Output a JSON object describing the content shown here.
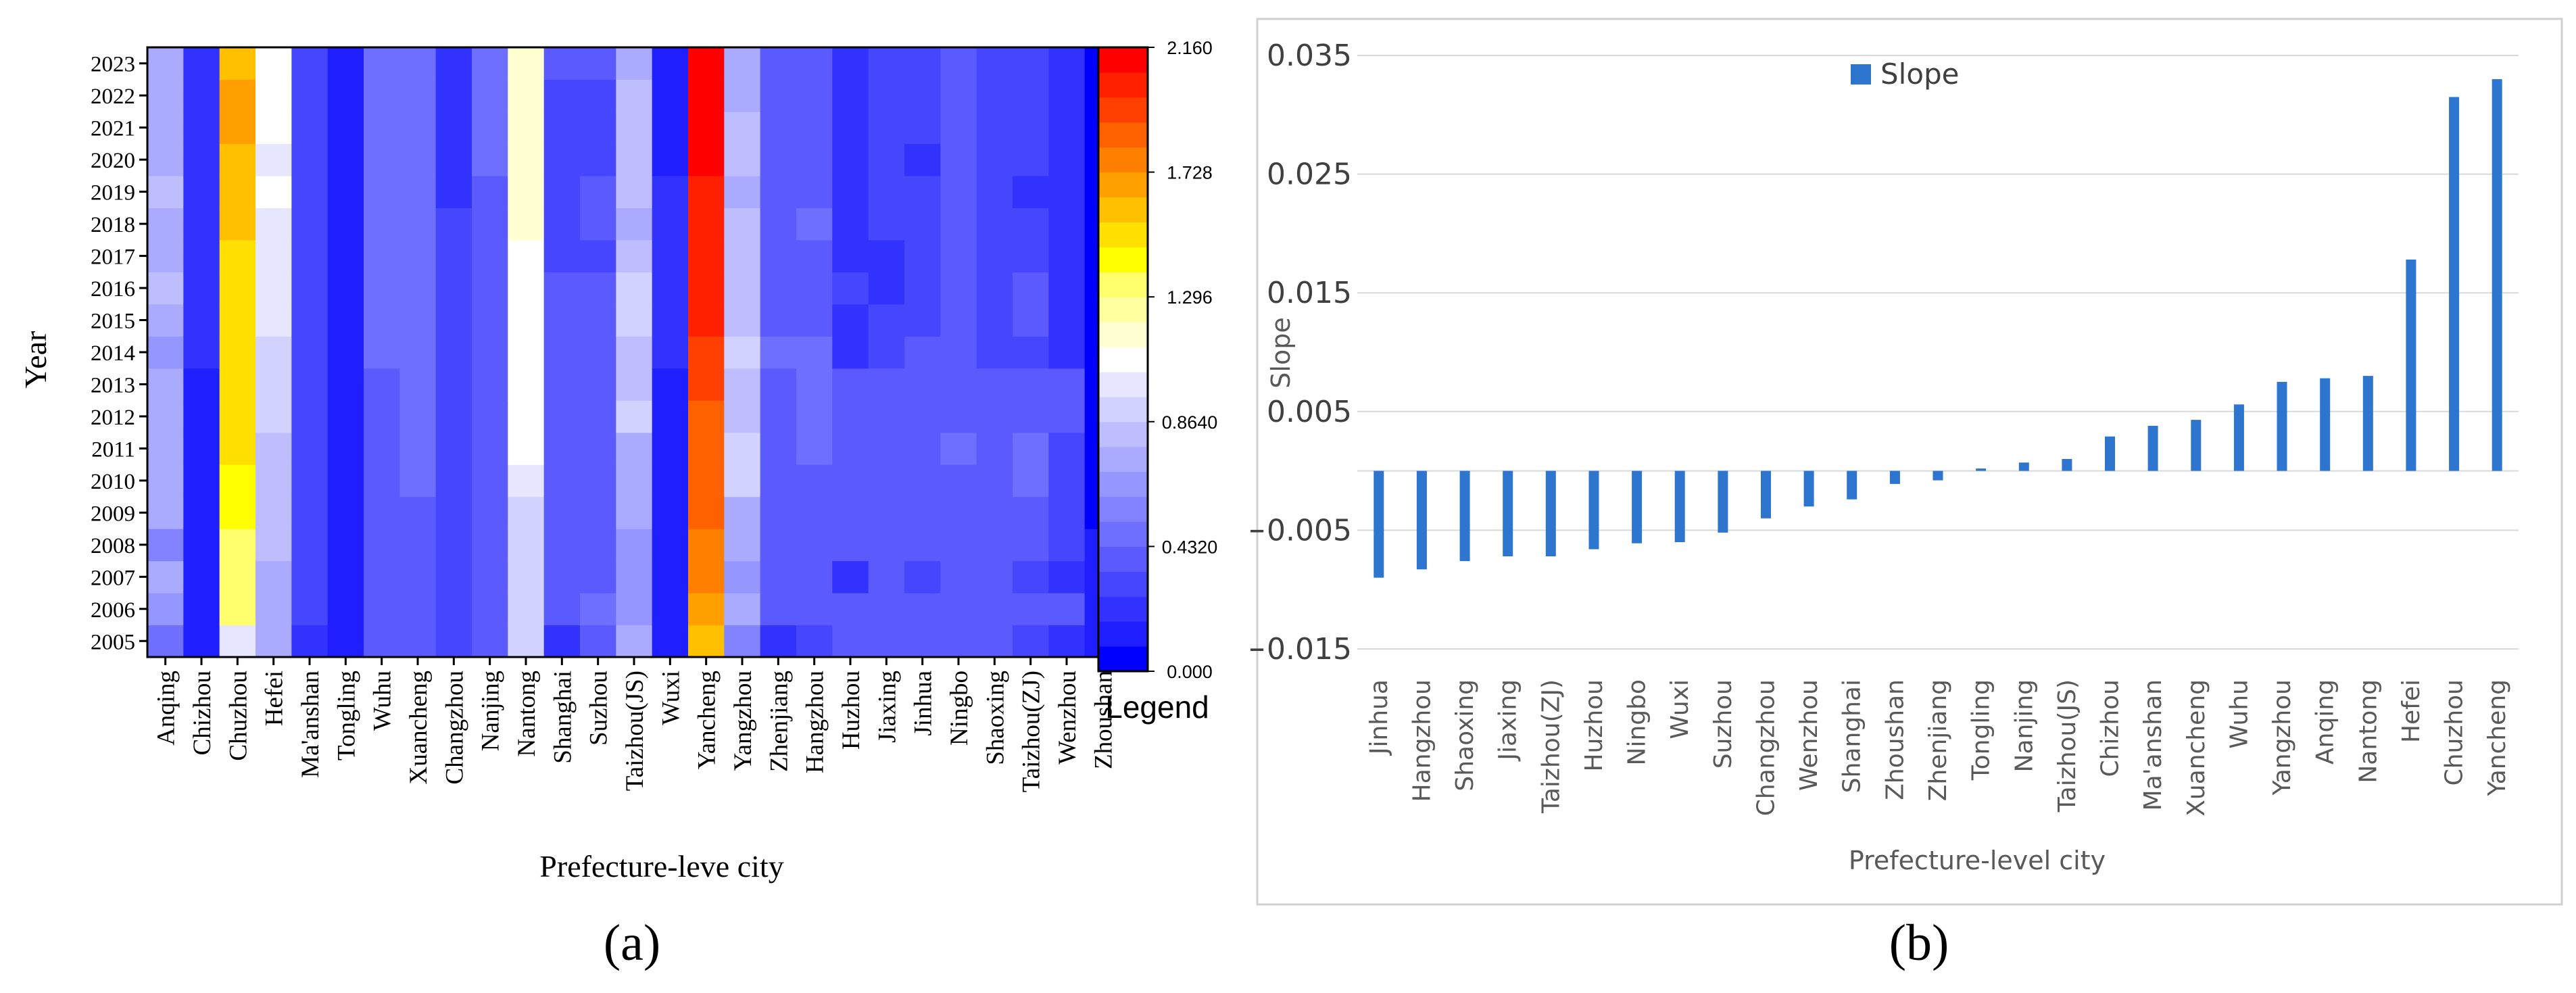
{
  "figure": {
    "panel_a_caption": "(a)",
    "panel_b_caption": "(b)"
  },
  "chart_data": [
    {
      "type": "heatmap",
      "title": "",
      "xlabel": "Prefecture-leve city",
      "ylabel": "Year",
      "x_categories": [
        "Anqing",
        "Chizhou",
        "Chuzhou",
        "Hefei",
        "Ma'anshan",
        "Tongling",
        "Wuhu",
        "Xuancheng",
        "Changzhou",
        "Nanjing",
        "Nantong",
        "Shanghai",
        "Suzhou",
        "Taizhou(JS)",
        "Wuxi",
        "Yancheng",
        "Yangzhou",
        "Zhenjiang",
        "Hangzhou",
        "Huzhou",
        "Jiaxing",
        "Jinhua",
        "Ningbo",
        "Shaoxing",
        "Taizhou(ZJ)",
        "Wenzhou",
        "Zhoushan"
      ],
      "y_categories": [
        "2005",
        "2006",
        "2007",
        "2008",
        "2009",
        "2010",
        "2011",
        "2012",
        "2013",
        "2014",
        "2015",
        "2016",
        "2017",
        "2018",
        "2019",
        "2020",
        "2021",
        "2022",
        "2023"
      ],
      "values": {
        "Anqing": [
          0.5,
          0.65,
          0.7,
          0.6,
          0.7,
          0.72,
          0.72,
          0.72,
          0.7,
          0.65,
          0.75,
          0.78,
          0.75,
          0.75,
          0.8,
          0.72,
          0.76,
          0.74,
          0.7
        ],
        "Chizhou": [
          0.1,
          0.1,
          0.1,
          0.1,
          0.1,
          0.1,
          0.1,
          0.1,
          0.1,
          0.18,
          0.18,
          0.18,
          0.18,
          0.18,
          0.18,
          0.18,
          0.18,
          0.18,
          0.18
        ],
        "Chuzhou": [
          1.0,
          1.3,
          1.3,
          1.35,
          1.4,
          1.45,
          1.5,
          1.5,
          1.5,
          1.5,
          1.5,
          1.5,
          1.5,
          1.6,
          1.6,
          1.6,
          1.7,
          1.65,
          1.6
        ],
        "Hefei": [
          0.72,
          0.76,
          0.76,
          0.8,
          0.8,
          0.8,
          0.82,
          0.88,
          0.88,
          0.9,
          1.0,
          1.02,
          1.02,
          1.02,
          1.1,
          1.02,
          1.1,
          1.1,
          1.12
        ],
        "Ma'anshan": [
          0.2,
          0.3,
          0.3,
          0.3,
          0.3,
          0.3,
          0.3,
          0.3,
          0.3,
          0.3,
          0.3,
          0.3,
          0.3,
          0.3,
          0.3,
          0.3,
          0.3,
          0.3,
          0.3
        ],
        "Tongling": [
          0.15,
          0.15,
          0.15,
          0.15,
          0.15,
          0.15,
          0.15,
          0.15,
          0.15,
          0.15,
          0.15,
          0.15,
          0.15,
          0.15,
          0.15,
          0.15,
          0.15,
          0.15,
          0.15
        ],
        "Wuhu": [
          0.35,
          0.35,
          0.35,
          0.35,
          0.35,
          0.35,
          0.35,
          0.35,
          0.38,
          0.45,
          0.45,
          0.45,
          0.45,
          0.45,
          0.45,
          0.45,
          0.45,
          0.45,
          0.45
        ],
        "Xuancheng": [
          0.35,
          0.35,
          0.35,
          0.35,
          0.4,
          0.45,
          0.45,
          0.45,
          0.45,
          0.45,
          0.45,
          0.45,
          0.45,
          0.45,
          0.45,
          0.45,
          0.45,
          0.45,
          0.45
        ],
        "Changzhou": [
          0.3,
          0.3,
          0.3,
          0.3,
          0.3,
          0.3,
          0.3,
          0.3,
          0.3,
          0.3,
          0.3,
          0.3,
          0.3,
          0.3,
          0.25,
          0.25,
          0.25,
          0.25,
          0.25
        ],
        "Nanjing": [
          0.4,
          0.4,
          0.4,
          0.4,
          0.38,
          0.38,
          0.38,
          0.38,
          0.38,
          0.38,
          0.38,
          0.38,
          0.38,
          0.38,
          0.35,
          0.45,
          0.45,
          0.45,
          0.45
        ],
        "Nantong": [
          0.9,
          0.95,
          0.95,
          0.95,
          0.95,
          1.0,
          1.1,
          1.1,
          1.1,
          1.1,
          1.1,
          1.1,
          1.1,
          1.2,
          1.2,
          1.2,
          1.2,
          1.2,
          1.2
        ],
        "Shanghai": [
          0.25,
          0.35,
          0.35,
          0.35,
          0.35,
          0.35,
          0.35,
          0.35,
          0.35,
          0.35,
          0.35,
          0.35,
          0.3,
          0.3,
          0.3,
          0.3,
          0.3,
          0.3,
          0.4
        ],
        "Suzhou": [
          0.35,
          0.45,
          0.35,
          0.35,
          0.35,
          0.35,
          0.35,
          0.35,
          0.35,
          0.35,
          0.35,
          0.35,
          0.3,
          0.35,
          0.35,
          0.3,
          0.3,
          0.3,
          0.35
        ],
        "Taizhou(JS)": [
          0.7,
          0.65,
          0.65,
          0.65,
          0.7,
          0.75,
          0.7,
          0.88,
          0.85,
          0.8,
          0.88,
          0.9,
          0.85,
          0.75,
          0.8,
          0.8,
          0.8,
          0.8,
          0.75
        ],
        "Wuxi": [
          0.15,
          0.15,
          0.15,
          0.15,
          0.15,
          0.15,
          0.15,
          0.15,
          0.15,
          0.2,
          0.25,
          0.2,
          0.2,
          0.2,
          0.2,
          0.15,
          0.15,
          0.15,
          0.15
        ],
        "Yancheng": [
          1.6,
          1.65,
          1.75,
          1.8,
          1.85,
          1.85,
          1.9,
          1.9,
          1.95,
          1.95,
          2.05,
          2.05,
          2.0,
          2.05,
          2.05,
          2.1,
          2.1,
          2.1,
          2.15
        ],
        "Yangzhou": [
          0.55,
          0.75,
          0.65,
          0.7,
          0.7,
          0.9,
          0.9,
          0.8,
          0.8,
          0.9,
          0.8,
          0.8,
          0.8,
          0.8,
          0.7,
          0.8,
          0.8,
          0.7,
          0.7
        ],
        "Zhenjiang": [
          0.25,
          0.35,
          0.35,
          0.35,
          0.35,
          0.35,
          0.35,
          0.35,
          0.4,
          0.45,
          0.35,
          0.35,
          0.35,
          0.35,
          0.35,
          0.35,
          0.35,
          0.35,
          0.35
        ],
        "Hangzhou": [
          0.3,
          0.35,
          0.35,
          0.35,
          0.4,
          0.35,
          0.45,
          0.45,
          0.45,
          0.45,
          0.4,
          0.4,
          0.4,
          0.45,
          0.35,
          0.35,
          0.35,
          0.35,
          0.35
        ],
        "Huzhou": [
          0.35,
          0.4,
          0.25,
          0.35,
          0.35,
          0.35,
          0.35,
          0.35,
          0.35,
          0.25,
          0.25,
          0.3,
          0.25,
          0.25,
          0.25,
          0.25,
          0.25,
          0.25,
          0.25
        ],
        "Jiaxing": [
          0.35,
          0.35,
          0.35,
          0.4,
          0.4,
          0.35,
          0.35,
          0.4,
          0.4,
          0.3,
          0.3,
          0.25,
          0.25,
          0.3,
          0.3,
          0.3,
          0.3,
          0.3,
          0.3
        ],
        "Jinhua": [
          0.35,
          0.35,
          0.3,
          0.35,
          0.35,
          0.35,
          0.35,
          0.4,
          0.4,
          0.35,
          0.3,
          0.3,
          0.3,
          0.3,
          0.3,
          0.2,
          0.3,
          0.3,
          0.3
        ],
        "Ningbo": [
          0.35,
          0.35,
          0.35,
          0.35,
          0.35,
          0.35,
          0.45,
          0.4,
          0.4,
          0.35,
          0.35,
          0.35,
          0.4,
          0.35,
          0.35,
          0.35,
          0.35,
          0.35,
          0.35
        ],
        "Shaoxing": [
          0.35,
          0.35,
          0.35,
          0.35,
          0.35,
          0.35,
          0.35,
          0.35,
          0.35,
          0.3,
          0.3,
          0.3,
          0.3,
          0.3,
          0.3,
          0.3,
          0.3,
          0.3,
          0.3
        ],
        "Taizhou(ZJ)": [
          0.3,
          0.35,
          0.3,
          0.35,
          0.35,
          0.45,
          0.45,
          0.4,
          0.4,
          0.3,
          0.35,
          0.35,
          0.3,
          0.3,
          0.25,
          0.3,
          0.3,
          0.3,
          0.3
        ],
        "Wenzhou": [
          0.25,
          0.35,
          0.25,
          0.3,
          0.3,
          0.3,
          0.3,
          0.35,
          0.35,
          0.25,
          0.25,
          0.25,
          0.25,
          0.25,
          0.25,
          0.25,
          0.25,
          0.25,
          0.25
        ],
        "Zhoushan": [
          0.1,
          0.1,
          0.1,
          0.1,
          0.05,
          0.05,
          0.05,
          0.05,
          0.05,
          0.05,
          0.05,
          0.05,
          0.05,
          0.05,
          0.05,
          0.05,
          0.05,
          0.05,
          0.05
        ]
      },
      "zlim": [
        0.0,
        2.16
      ],
      "colorbar_ticks": [
        "2.160",
        "1.728",
        "1.296",
        "0.8640",
        "0.4320",
        "0.000"
      ],
      "colorbar_tick_values": [
        2.16,
        1.728,
        1.296,
        0.864,
        0.432,
        0.0
      ],
      "colorbar_label": "Legend",
      "colors": {
        "palette": [
          "#0000ff",
          "#1e1eff",
          "#3232ff",
          "#4646ff",
          "#5a5aff",
          "#6e6eff",
          "#8282ff",
          "#9696ff",
          "#aaaaff",
          "#bebeff",
          "#d2d2ff",
          "#e6e6ff",
          "#ffffff",
          "#ffffd2",
          "#ffffa0",
          "#ffff6e",
          "#ffff00",
          "#ffe000",
          "#ffc000",
          "#ffa000",
          "#ff8000",
          "#ff6000",
          "#ff4000",
          "#ff2000",
          "#ff0000"
        ]
      }
    },
    {
      "type": "bar",
      "title": "",
      "xlabel": "Prefecture-level city",
      "ylabel": "Slope",
      "categories": [
        "Jinhua",
        "Hangzhou",
        "Shaoxing",
        "Jiaxing",
        "Taizhou(ZJ)",
        "Huzhou",
        "Ningbo",
        "Wuxi",
        "Suzhou",
        "Changzhou",
        "Wenzhou",
        "Shanghai",
        "Zhoushan",
        "Zhenjiang",
        "Tongling",
        "Nanjing",
        "Taizhou(JS)",
        "Chizhou",
        "Ma'anshan",
        "Xuancheng",
        "Wuhu",
        "Yangzhou",
        "Anqing",
        "Nantong",
        "Hefei",
        "Chuzhou",
        "Yancheng"
      ],
      "series": [
        {
          "name": "Slope",
          "values": [
            -0.009,
            -0.0083,
            -0.0076,
            -0.0072,
            -0.0072,
            -0.0066,
            -0.0061,
            -0.006,
            -0.0052,
            -0.004,
            -0.003,
            -0.0024,
            -0.0011,
            -0.0008,
            0.0002,
            0.0007,
            0.001,
            0.0029,
            0.0038,
            0.0043,
            0.0056,
            0.0075,
            0.0078,
            0.008,
            0.0178,
            0.0315,
            0.033
          ]
        }
      ],
      "ylim": [
        -0.015,
        0.035
      ],
      "yticks": [
        "0.035",
        "0.025",
        "0.015",
        "0.005",
        "−0.005",
        "−0.015"
      ],
      "ytick_values": [
        0.035,
        0.025,
        0.015,
        0.005,
        -0.005,
        -0.015
      ],
      "grid": true,
      "legend": "top-center",
      "colors": {
        "bar": "#2e75d0",
        "grid": "#d9d9d9",
        "frame": "#bfbfbf",
        "text": "#595959"
      }
    }
  ]
}
